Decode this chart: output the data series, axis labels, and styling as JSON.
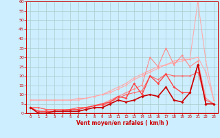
{
  "xlabel": "Vent moyen/en rafales ( km/h )",
  "xlim": [
    -0.5,
    23.5
  ],
  "ylim": [
    0,
    60
  ],
  "yticks": [
    0,
    5,
    10,
    15,
    20,
    25,
    30,
    35,
    40,
    45,
    50,
    55,
    60
  ],
  "xticks": [
    0,
    1,
    2,
    3,
    4,
    5,
    6,
    7,
    8,
    9,
    10,
    11,
    12,
    13,
    14,
    15,
    16,
    17,
    18,
    19,
    20,
    21,
    22,
    23
  ],
  "bg_color": "#cceeff",
  "grid_color": "#aacccc",
  "lines": [
    {
      "color": "#ffaaaa",
      "lw": 0.8,
      "marker": "D",
      "ms": 1.5,
      "y": [
        7,
        7,
        7,
        7,
        7,
        7,
        8,
        8,
        9,
        10,
        11,
        13,
        15,
        18,
        20,
        22,
        24,
        26,
        28,
        29,
        29,
        60,
        28,
        7
      ]
    },
    {
      "color": "#ffaaaa",
      "lw": 0.8,
      "marker": "D",
      "ms": 1.5,
      "y": [
        7,
        7,
        7,
        7,
        7,
        7,
        7,
        8,
        9,
        10,
        12,
        14,
        16,
        19,
        21,
        23,
        25,
        26,
        27,
        28,
        29,
        30,
        22,
        7
      ]
    },
    {
      "color": "#ff8888",
      "lw": 0.8,
      "marker": "D",
      "ms": 1.5,
      "y": [
        3,
        3,
        2,
        2,
        2,
        2,
        3,
        3,
        4,
        5,
        7,
        9,
        11,
        13,
        15,
        30,
        25,
        35,
        26,
        31,
        25,
        28,
        8,
        5
      ]
    },
    {
      "color": "#ff6666",
      "lw": 0.8,
      "marker": "D",
      "ms": 1.5,
      "y": [
        3,
        3,
        2,
        2,
        2,
        2,
        3,
        3,
        4,
        4,
        6,
        8,
        10,
        11,
        12,
        20,
        18,
        21,
        20,
        20,
        20,
        22,
        7,
        5
      ]
    },
    {
      "color": "#ff4444",
      "lw": 1.0,
      "marker": "D",
      "ms": 2.0,
      "y": [
        3,
        1,
        1,
        1,
        1,
        2,
        2,
        3,
        4,
        5,
        6,
        9,
        8,
        16,
        10,
        20,
        16,
        21,
        14,
        11,
        11,
        26,
        5,
        5
      ]
    },
    {
      "color": "#cc0000",
      "lw": 1.2,
      "marker": "D",
      "ms": 2.0,
      "y": [
        3,
        0,
        0,
        1,
        1,
        1,
        1,
        2,
        3,
        3,
        5,
        7,
        6,
        7,
        9,
        10,
        9,
        14,
        7,
        6,
        11,
        26,
        5,
        5
      ]
    }
  ]
}
